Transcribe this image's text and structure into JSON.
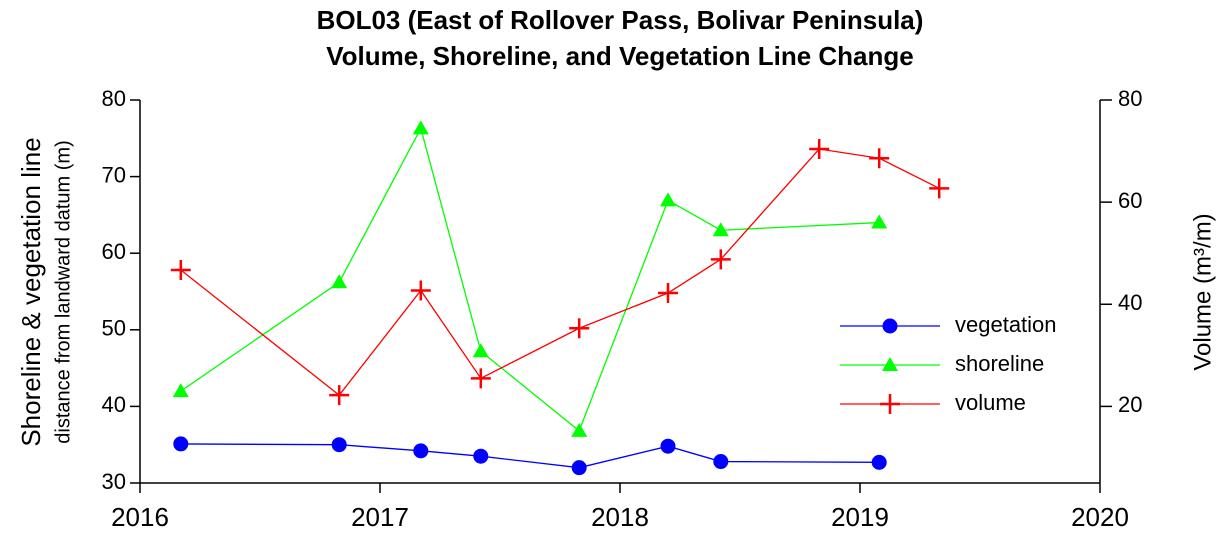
{
  "chart_data": {
    "type": "line",
    "title": "BOL03 (East of Rollover Pass, Bolivar Peninsula)",
    "subtitle": "Volume, Shoreline, and Vegetation Line Change",
    "ylabel": "Shoreline & vegetation line",
    "ylabel_sub": "distance from landward datum (m)",
    "y2label": "Volume (m³/m)",
    "xlim": [
      2016,
      2020
    ],
    "xticks": [
      2016,
      2017,
      2018,
      2019,
      2020
    ],
    "ylim": [
      30,
      80
    ],
    "yticks": [
      30,
      40,
      50,
      60,
      70,
      80
    ],
    "y2lim": [
      5,
      80
    ],
    "y2ticks": [
      20,
      40,
      60,
      80
    ],
    "legend": "right",
    "series": [
      {
        "name": "vegetation",
        "color": "#0000ff",
        "marker": "circle",
        "x": [
          2016.17,
          2016.83,
          2017.17,
          2017.42,
          2017.83,
          2018.2,
          2018.42,
          2019.08
        ],
        "values": [
          35.1,
          35.0,
          34.2,
          33.5,
          32.0,
          34.8,
          32.8,
          32.7
        ]
      },
      {
        "name": "shoreline",
        "color": "#00ff00",
        "marker": "triangle",
        "x": [
          2016.17,
          2016.83,
          2017.17,
          2017.42,
          2017.83,
          2018.2,
          2018.42,
          2019.08
        ],
        "values": [
          42.0,
          56.2,
          76.3,
          47.2,
          36.8,
          66.9,
          63.0,
          64.0
        ]
      },
      {
        "name": "volume",
        "color": "#ff0000",
        "marker": "plus",
        "axis": "y2",
        "x": [
          2016.17,
          2016.83,
          2017.17,
          2017.42,
          2017.83,
          2018.2,
          2018.42,
          2018.83,
          2019.08,
          2019.33
        ],
        "values": [
          46.7,
          22.2,
          42.7,
          25.5,
          35.3,
          42.2,
          48.8,
          70.4,
          68.6,
          62.7
        ]
      }
    ]
  }
}
